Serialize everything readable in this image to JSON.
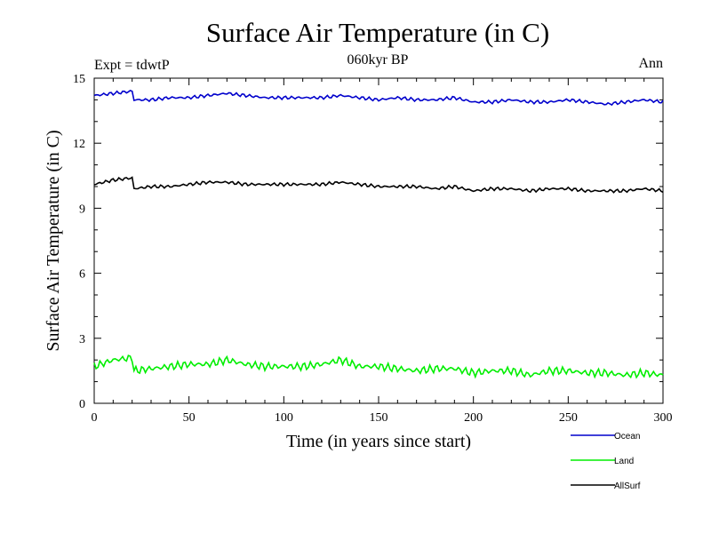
{
  "chart_data": {
    "type": "line",
    "title": "Surface Air Temperature (in C)",
    "subtitle": "060kyr BP",
    "left_label": "Expt = tdwtP",
    "right_label": "Ann",
    "xlabel": "Time (in years since start)",
    "ylabel": "Surface Air Temperature (in C)",
    "xlim": [
      0,
      300
    ],
    "ylim": [
      0,
      15
    ],
    "x_ticks": [
      0,
      50,
      100,
      150,
      200,
      250,
      300
    ],
    "y_ticks": [
      0,
      3,
      6,
      9,
      12,
      15
    ],
    "x_tick_labels": [
      "0",
      "50",
      "100",
      "150",
      "200",
      "250",
      "300"
    ],
    "y_tick_labels": [
      "0",
      "3",
      "6",
      "9",
      "12",
      "15"
    ],
    "x": [
      0,
      10,
      20,
      21,
      30,
      40,
      50,
      60,
      70,
      80,
      90,
      100,
      110,
      120,
      130,
      140,
      150,
      160,
      170,
      180,
      190,
      200,
      210,
      220,
      230,
      240,
      250,
      260,
      270,
      280,
      290,
      300
    ],
    "series": [
      {
        "name": "Ocean",
        "color": "#0000cc",
        "values": [
          14.2,
          14.3,
          14.4,
          14.0,
          14.0,
          14.1,
          14.1,
          14.2,
          14.3,
          14.2,
          14.1,
          14.1,
          14.1,
          14.1,
          14.2,
          14.1,
          14.0,
          14.1,
          14.0,
          14.0,
          14.1,
          13.9,
          13.9,
          14.0,
          13.9,
          13.9,
          14.0,
          13.9,
          13.8,
          13.9,
          14.0,
          13.9
        ]
      },
      {
        "name": "Land",
        "color": "#00ee00",
        "values": [
          1.7,
          2.0,
          2.1,
          1.5,
          1.6,
          1.7,
          1.8,
          1.8,
          2.0,
          1.8,
          1.7,
          1.7,
          1.7,
          1.8,
          2.0,
          1.7,
          1.7,
          1.6,
          1.5,
          1.6,
          1.6,
          1.4,
          1.5,
          1.5,
          1.3,
          1.5,
          1.5,
          1.4,
          1.4,
          1.3,
          1.4,
          1.3
        ]
      },
      {
        "name": "AllSurf",
        "color": "#000000",
        "values": [
          10.1,
          10.3,
          10.4,
          9.9,
          10.0,
          10.0,
          10.1,
          10.2,
          10.2,
          10.1,
          10.1,
          10.1,
          10.1,
          10.1,
          10.2,
          10.1,
          10.0,
          10.0,
          10.0,
          9.9,
          10.0,
          9.8,
          9.9,
          9.9,
          9.8,
          9.9,
          9.9,
          9.8,
          9.8,
          9.8,
          9.9,
          9.8
        ]
      }
    ],
    "legend_position": "bottom-right"
  }
}
